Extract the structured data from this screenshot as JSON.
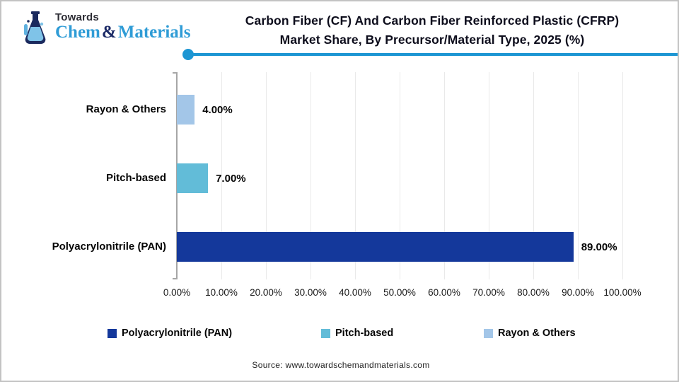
{
  "logo": {
    "towards": "Towards",
    "chem": "Chem",
    "ampersand": "&",
    "materials": "Materials"
  },
  "header": {
    "title_line1": "Carbon Fiber (CF) And Carbon Fiber Reinforced Plastic (CFRP)",
    "title_line2": "Market Share, By Precursor/Material Type, 2025 (%)"
  },
  "chart_data": {
    "type": "bar",
    "orientation": "horizontal",
    "title": "Carbon Fiber (CF) And Carbon Fiber Reinforced Plastic (CFRP) Market Share, By Precursor/Material Type, 2025 (%)",
    "categories": [
      "Rayon & Others",
      "Pitch-based",
      "Polyacrylonitrile (PAN)"
    ],
    "values": [
      4.0,
      7.0,
      89.0
    ],
    "rows": [
      {
        "label": "Rayon & Others",
        "value": 4,
        "value_label": "4.00%",
        "color": "#a3c6e8"
      },
      {
        "label": "Pitch-based",
        "value": 7,
        "value_label": "7.00%",
        "color": "#62bcd8"
      },
      {
        "label": "Polyacrylonitrile (PAN)",
        "value": 89,
        "value_label": "89.00%",
        "color": "#14389b"
      }
    ],
    "x_ticks": [
      "0.00%",
      "10.00%",
      "20.00%",
      "30.00%",
      "40.00%",
      "50.00%",
      "60.00%",
      "70.00%",
      "80.00%",
      "90.00%",
      "100.00%"
    ],
    "xlim": [
      0,
      100
    ],
    "grid": true,
    "legend_position": "bottom"
  },
  "legend": [
    {
      "label": "Polyacrylonitrile (PAN)",
      "color": "#14389b"
    },
    {
      "label": "Pitch-based",
      "color": "#62bcd8"
    },
    {
      "label": "Rayon & Others",
      "color": "#a3c6e8"
    }
  ],
  "footer": {
    "source": "Source: www.towardschemandmaterials.com"
  },
  "colors": {
    "accent_line": "#1d96d3",
    "bar_pan": "#14389b",
    "bar_pitch": "#62bcd8",
    "bar_rayon": "#a3c6e8",
    "axis": "#a6a6a6",
    "gridline": "#e9e9e9",
    "logo_blue": "#2f9cd6",
    "logo_navy": "#1b2a66"
  }
}
